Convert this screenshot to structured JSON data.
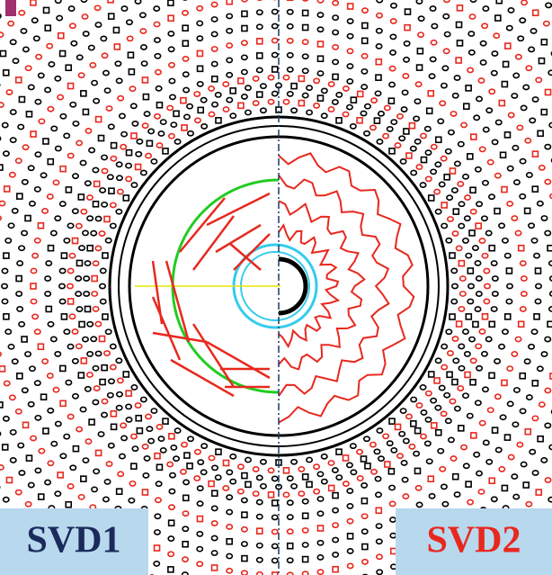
{
  "labels": {
    "left": "SVD1",
    "right": "SVD2"
  }
}
